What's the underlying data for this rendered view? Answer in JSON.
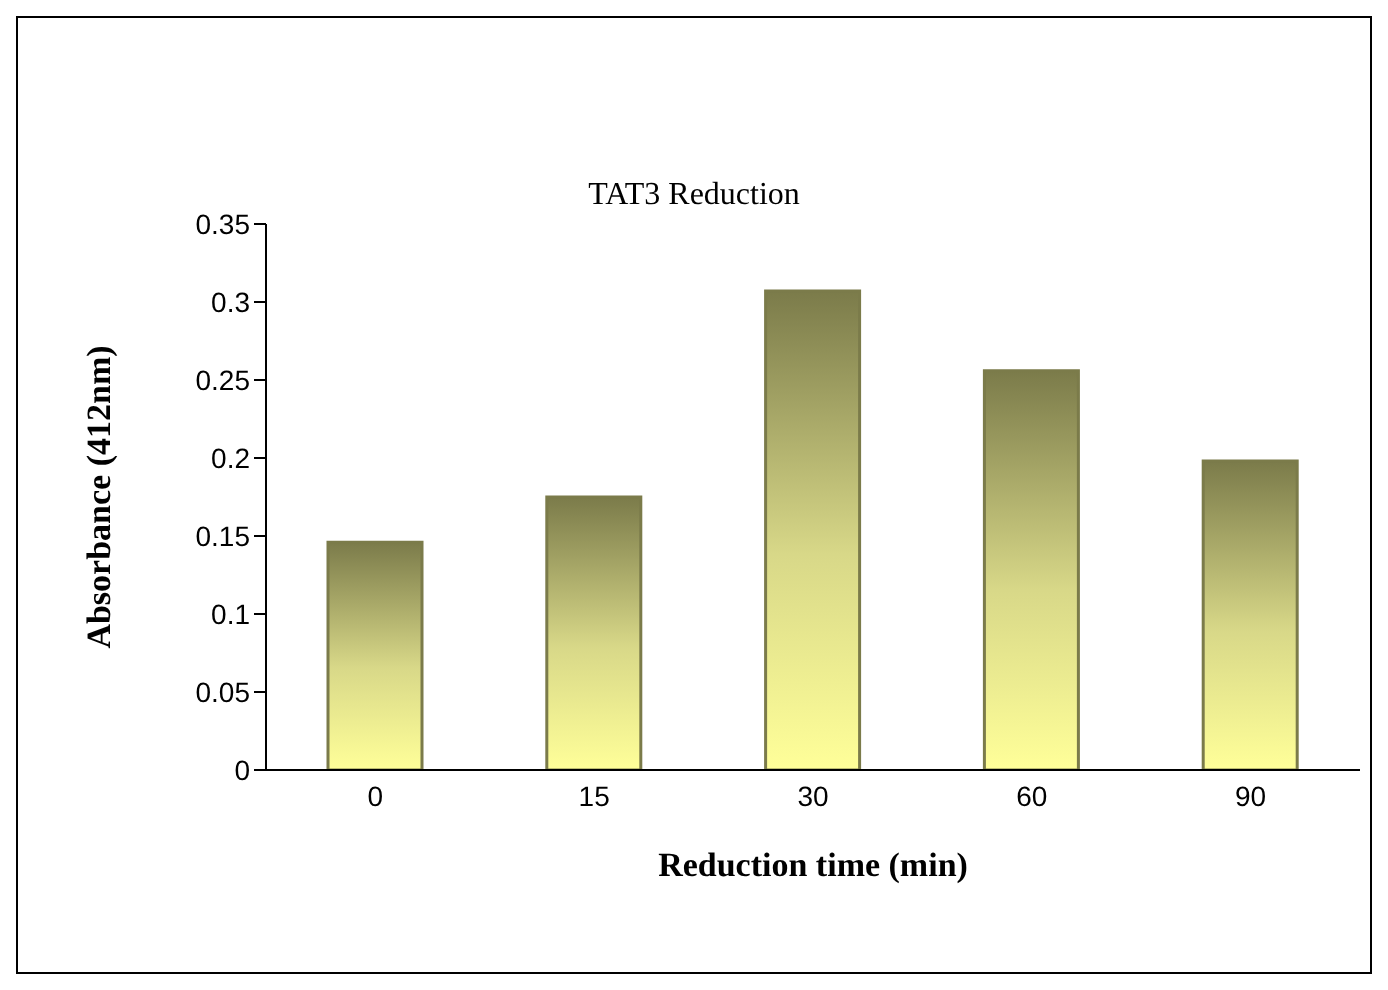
{
  "chart_data": {
    "type": "bar",
    "title": "TAT3 Reduction",
    "xlabel": "Reduction time (min)",
    "ylabel": "Absorbance (412nm)",
    "categories": [
      "0",
      "15",
      "30",
      "60",
      "90"
    ],
    "values": [
      0.146,
      0.175,
      0.307,
      0.256,
      0.198
    ],
    "color": "#7b7b4a",
    "ylim": [
      0,
      0.35
    ],
    "yticks": [
      0,
      0.05,
      0.1,
      0.15,
      0.2,
      0.25,
      0.3,
      0.35
    ],
    "grid": false,
    "legend": false
  }
}
